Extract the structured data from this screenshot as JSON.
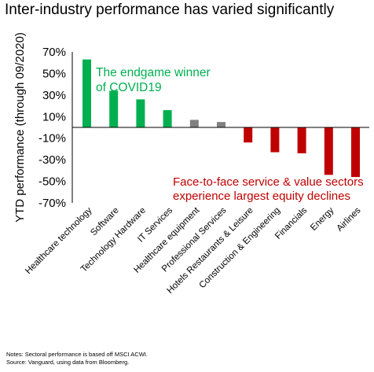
{
  "chart_data": {
    "type": "bar",
    "title": "Inter-industry performance has varied significantly",
    "ylabel": "YTD performance (through 09/2020)",
    "xlabel": "",
    "ylim": [
      -70,
      70
    ],
    "ytick_values": [
      70,
      50,
      30,
      10,
      -10,
      -30,
      -50,
      -70
    ],
    "yticks": [
      "70%",
      "50%",
      "30%",
      "10%",
      "-10%",
      "-30%",
      "-50%",
      "-70%"
    ],
    "categories": [
      "Healthcare technology",
      "Software",
      "Technology Hardware",
      "IT Services",
      "Healthcare equipment",
      "Professional Services",
      "Hotels Restaurants & Leisure",
      "Construction & Engineering",
      "Financials",
      "Energy",
      "Airlines"
    ],
    "values": [
      63,
      34,
      26,
      16,
      7,
      5,
      -14,
      -23,
      -24,
      -44,
      -46
    ],
    "bar_colors": [
      "#00b050",
      "#00b050",
      "#00b050",
      "#00b050",
      "#808080",
      "#808080",
      "#c00000",
      "#c00000",
      "#c00000",
      "#c00000",
      "#c00000"
    ],
    "grid": false,
    "annotations": [
      {
        "text": "The endgame winner of COVID19",
        "lines": [
          "The endgame winner",
          "of COVID19"
        ],
        "color": "#00b050"
      },
      {
        "text": "Face-to-face service & value sectors experience largest equity declines",
        "lines": [
          "Face-to-face service & value sectors",
          "experience largest equity declines"
        ],
        "color": "#c00000"
      }
    ]
  },
  "notes": {
    "line1": "Notes: Sectoral performance is based off MSCI ACWI.",
    "line2": "Source: Vanguard, using data from Bloomberg."
  }
}
